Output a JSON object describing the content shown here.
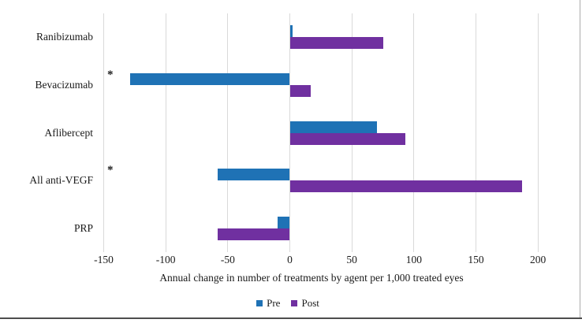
{
  "figure": {
    "background_color": "#ffffff",
    "gridline_color": "#d9d9d9",
    "right_border_color": "#ababab",
    "bottom_edge_color": "#4d4d4d"
  },
  "chart_data": {
    "type": "bar",
    "orientation": "horizontal",
    "categories": [
      "Ranibizumab",
      "Bevacizumab",
      "Aflibercept",
      "All anti-VEGF",
      "PRP"
    ],
    "category_markers": [
      "",
      "*",
      "",
      "*",
      ""
    ],
    "series": [
      {
        "name": "Pre",
        "color": "#1f72b5",
        "values": [
          2,
          -129,
          70,
          -58,
          -10
        ]
      },
      {
        "name": "Post",
        "color": "#7030a0",
        "values": [
          75,
          17,
          93,
          187,
          -58
        ]
      }
    ],
    "xlabel": "Annual change in number of treatments by agent per 1,000 treated eyes",
    "xticks": [
      -150,
      -100,
      -50,
      0,
      50,
      100,
      150,
      200
    ],
    "xlim": [
      -150,
      235
    ],
    "grid": true,
    "legend_position": "bottom",
    "legend_entries": [
      "Pre",
      "Post"
    ]
  }
}
